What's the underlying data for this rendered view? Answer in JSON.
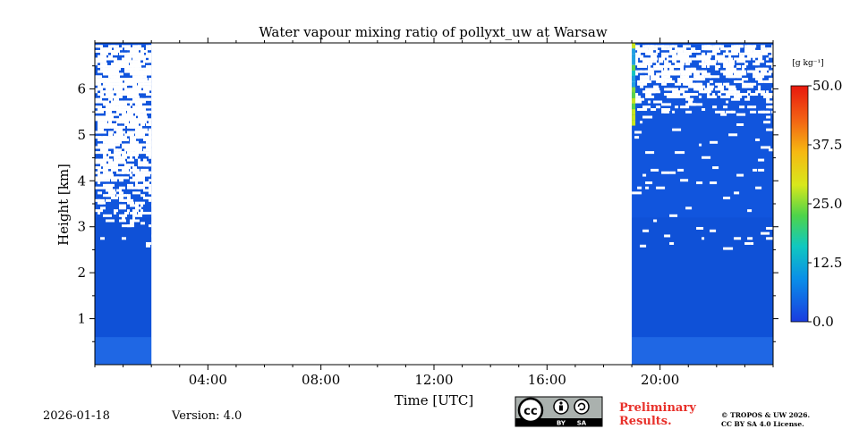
{
  "chart_data": {
    "type": "heatmap",
    "title": "Water vapour mixing ratio of pollyxt_uw at Warsaw",
    "xlabel": "Time [UTC]",
    "ylabel": "Height [km]",
    "xlim_hours": [
      0,
      24
    ],
    "ylim_km": [
      0,
      7
    ],
    "x_ticks": [
      {
        "hour": 4,
        "label": "04:00"
      },
      {
        "hour": 8,
        "label": "08:00"
      },
      {
        "hour": 12,
        "label": "12:00"
      },
      {
        "hour": 16,
        "label": "16:00"
      },
      {
        "hour": 20,
        "label": "20:00"
      }
    ],
    "y_ticks": [
      {
        "km": 1,
        "label": "1"
      },
      {
        "km": 2,
        "label": "2"
      },
      {
        "km": 3,
        "label": "3"
      },
      {
        "km": 4,
        "label": "4"
      },
      {
        "km": 5,
        "label": "5"
      },
      {
        "km": 6,
        "label": "6"
      }
    ],
    "data_segments": [
      {
        "start_hour": 0.0,
        "end_hour": 2.0,
        "typical_value_g_per_kg": 1.5,
        "gappy_above_km": 3.0
      },
      {
        "start_hour": 19.0,
        "end_hour": 24.0,
        "typical_value_g_per_kg": 1.5,
        "gappy_above_km": 5.5
      }
    ],
    "no_data_interval_hours": [
      2.0,
      19.0
    ],
    "colorbar": {
      "unit_label": "[g kg⁻¹]",
      "min": 0.0,
      "max": 50.0,
      "ticks": [
        "0.0",
        "12.5",
        "25.0",
        "37.5",
        "50.0"
      ],
      "colormap": "jet"
    }
  },
  "footer": {
    "date": "2026-01-18",
    "version": "Version: 4.0",
    "preliminary_line1": "Preliminary",
    "preliminary_line2": "Results.",
    "copyright_line1": "© TROPOS & UW 2026.",
    "copyright_line2": "CC BY SA 4.0 License.",
    "license_badge_text": [
      "cc",
      "BY",
      "SA"
    ]
  },
  "colors": {
    "background_blue": "#1155dd",
    "deep_blue": "#0b46c8",
    "light_blue": "#2c76ea",
    "accent_red": "#e8302a"
  }
}
